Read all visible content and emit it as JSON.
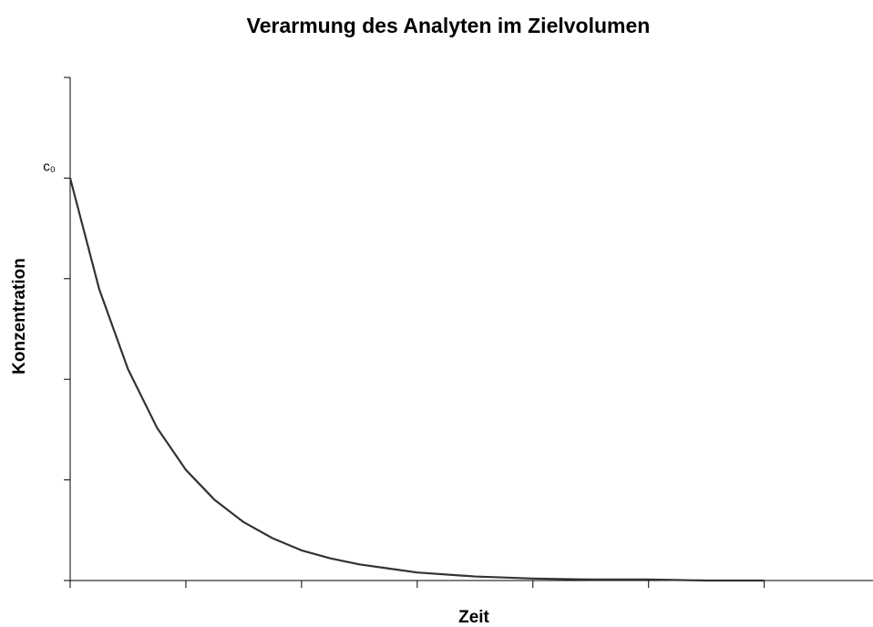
{
  "chart_data": {
    "type": "line",
    "title": "Verarmung des Analyten im Zielvolumen",
    "x_label": "Zeit",
    "y_label": "Konzentration",
    "x": [
      0,
      0.25,
      0.5,
      0.75,
      1,
      1.25,
      1.5,
      1.75,
      2,
      2.25,
      2.5,
      2.75,
      3,
      3.5,
      4,
      4.5,
      5,
      5.5,
      6
    ],
    "series": [
      {
        "name": "Konzentration",
        "color": "#333333",
        "values": [
          4,
          2.9,
          2.1,
          1.52,
          1.1,
          0.8,
          0.58,
          0.42,
          0.3,
          0.22,
          0.16,
          0.12,
          0.08,
          0.04,
          0.02,
          0.01,
          0.01,
          0,
          0
        ]
      }
    ],
    "xlim": [
      0,
      6.94
    ],
    "xticks": [
      0,
      1,
      2,
      3,
      4,
      5,
      6
    ],
    "ylim": [
      0,
      5
    ],
    "yticks": [
      {
        "value": 0,
        "label": null
      },
      {
        "value": 1,
        "label": null
      },
      {
        "value": 2,
        "label": null
      },
      {
        "value": 3,
        "label": null
      },
      {
        "value": 4,
        "label": "c₀"
      },
      {
        "value": 5,
        "label": null
      }
    ],
    "grid": false
  }
}
